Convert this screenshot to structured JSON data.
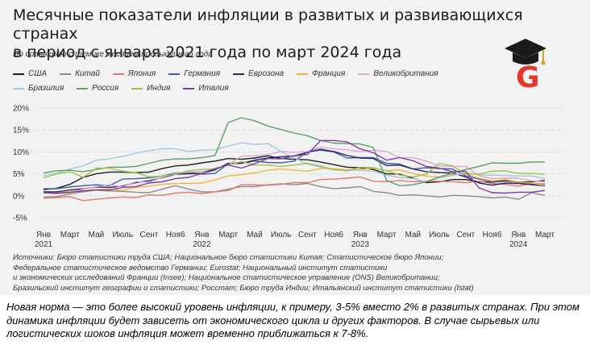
{
  "header": {
    "title_line1": "Месячные показатели инфляции в развитых и развивающихся странах",
    "title_line2": "в период с января 2021 года по март 2024 года",
    "subtitle": "По сравнению с тем же месяцем предыдущего года"
  },
  "colors": {
    "panel_bg": "#f2f2f2",
    "logo_red": "#e2372b",
    "logo_cap": "#1a1a1a"
  },
  "logo": {
    "letter": "G",
    "icon": "graduation-cap-icon"
  },
  "chart_data": {
    "type": "line",
    "title": "Месячные показатели инфляции в развитых и развивающихся странах в период с января 2021 года по март 2024 года",
    "subtitle": "По сравнению с тем же месяцем предыдущего года",
    "ylim": [
      -5,
      20
    ],
    "yticks": [
      -5,
      0,
      5,
      10,
      15,
      20
    ],
    "ytick_labels": [
      "-5%",
      "0%",
      "5%",
      "10%",
      "15%",
      "20%"
    ],
    "grid": "horizontal",
    "legend_position": "top",
    "x_tick_positions": [
      0,
      2,
      4,
      6,
      8,
      10,
      12,
      14,
      16,
      18,
      20,
      22,
      24,
      26,
      28,
      30,
      32,
      34,
      36,
      38
    ],
    "x_tick_labels": [
      "Янв",
      "Март",
      "Май",
      "Июль",
      "Сент",
      "Ноя6",
      "Янв",
      "Март",
      "Май",
      "Июль",
      "Сент",
      "Ноя6",
      "Янв",
      "Март",
      "Май",
      "Июль",
      "Сент",
      "Ноя6",
      "Янв",
      "Март"
    ],
    "x_year_labels": [
      {
        "index": 0,
        "label": "2021"
      },
      {
        "index": 12,
        "label": "2022"
      },
      {
        "index": 24,
        "label": "2023"
      },
      {
        "index": 36,
        "label": "2024"
      }
    ],
    "months": [
      "2021-01",
      "2021-02",
      "2021-03",
      "2021-04",
      "2021-05",
      "2021-06",
      "2021-07",
      "2021-08",
      "2021-09",
      "2021-10",
      "2021-11",
      "2021-12",
      "2022-01",
      "2022-02",
      "2022-03",
      "2022-04",
      "2022-05",
      "2022-06",
      "2022-07",
      "2022-08",
      "2022-09",
      "2022-10",
      "2022-11",
      "2022-12",
      "2023-01",
      "2023-02",
      "2023-03",
      "2023-04",
      "2023-05",
      "2023-06",
      "2023-07",
      "2023-08",
      "2023-09",
      "2023-10",
      "2023-11",
      "2023-12",
      "2024-01",
      "2024-02",
      "2024-03"
    ],
    "series": [
      {
        "name": "США",
        "color": "#1f1f1f",
        "values": [
          1.4,
          1.7,
          2.6,
          4.2,
          5.0,
          5.4,
          5.4,
          5.3,
          5.4,
          6.2,
          6.8,
          7.0,
          7.5,
          7.9,
          8.5,
          8.3,
          8.6,
          9.1,
          8.5,
          8.3,
          8.2,
          7.7,
          7.1,
          6.5,
          6.4,
          6.0,
          5.0,
          4.9,
          4.0,
          3.0,
          3.2,
          3.7,
          3.7,
          3.2,
          3.1,
          3.4,
          3.1,
          3.2,
          3.5
        ]
      },
      {
        "name": "Китай",
        "color": "#8c8c8c",
        "values": [
          -0.3,
          -0.2,
          0.4,
          0.9,
          1.3,
          1.1,
          1.0,
          0.8,
          0.7,
          1.5,
          2.3,
          1.5,
          0.9,
          0.9,
          1.5,
          2.1,
          2.1,
          2.5,
          2.7,
          2.5,
          2.8,
          2.1,
          1.6,
          1.8,
          2.1,
          1.0,
          0.7,
          0.1,
          0.2,
          0.0,
          -0.3,
          0.1,
          0.0,
          -0.2,
          -0.5,
          -0.3,
          -0.8,
          0.7,
          0.1
        ]
      },
      {
        "name": "Япония",
        "color": "#e07a6f",
        "values": [
          -0.6,
          -0.4,
          -0.2,
          -1.1,
          -0.8,
          -0.5,
          -0.3,
          -0.4,
          0.2,
          0.1,
          0.6,
          0.8,
          0.5,
          0.9,
          1.2,
          2.5,
          2.5,
          2.4,
          2.6,
          3.0,
          3.0,
          3.7,
          3.8,
          4.0,
          4.3,
          3.3,
          3.2,
          3.5,
          3.2,
          3.3,
          3.3,
          3.2,
          3.0,
          3.3,
          2.8,
          2.6,
          2.2,
          2.8,
          2.7
        ]
      },
      {
        "name": "Германия",
        "color": "#3f5fa8",
        "values": [
          1.6,
          1.6,
          2.0,
          2.3,
          2.5,
          2.3,
          3.8,
          3.9,
          4.1,
          4.5,
          5.2,
          5.3,
          4.9,
          5.1,
          7.3,
          7.4,
          7.9,
          7.6,
          7.5,
          7.9,
          10.0,
          10.4,
          10.0,
          8.6,
          8.7,
          8.7,
          7.4,
          7.2,
          6.1,
          6.4,
          6.2,
          6.1,
          4.5,
          3.8,
          3.2,
          3.7,
          2.9,
          2.5,
          2.2
        ]
      },
      {
        "name": "Еврозона",
        "color": "#2b2466",
        "values": [
          0.9,
          0.9,
          1.3,
          1.6,
          2.0,
          1.9,
          2.2,
          3.0,
          3.4,
          4.1,
          4.9,
          5.0,
          5.1,
          5.9,
          7.4,
          7.4,
          8.1,
          8.6,
          8.9,
          9.1,
          9.9,
          10.6,
          10.1,
          9.2,
          8.6,
          8.5,
          6.9,
          7.0,
          6.1,
          5.5,
          5.3,
          5.2,
          4.3,
          2.9,
          2.4,
          2.9,
          2.8,
          2.6,
          2.4
        ]
      },
      {
        "name": "Франция",
        "color": "#f0b43c",
        "values": [
          0.6,
          0.6,
          1.1,
          1.2,
          1.4,
          1.5,
          1.2,
          1.9,
          2.2,
          2.6,
          2.8,
          2.8,
          2.9,
          3.6,
          4.5,
          4.8,
          5.2,
          5.8,
          6.1,
          5.8,
          5.6,
          6.2,
          6.2,
          5.9,
          6.0,
          6.3,
          5.7,
          5.9,
          5.1,
          4.5,
          4.3,
          4.8,
          4.9,
          4.0,
          3.4,
          3.7,
          3.1,
          2.9,
          2.3
        ]
      },
      {
        "name": "Великобритания",
        "color": "#d8a8d2",
        "values": [
          0.7,
          0.4,
          0.7,
          1.5,
          2.1,
          2.5,
          2.0,
          3.2,
          3.1,
          4.2,
          5.1,
          5.4,
          5.5,
          6.2,
          7.0,
          9.0,
          9.1,
          9.4,
          10.1,
          9.9,
          10.1,
          11.1,
          10.7,
          10.5,
          10.1,
          10.4,
          10.1,
          8.7,
          8.7,
          7.9,
          6.8,
          6.7,
          6.7,
          4.6,
          3.9,
          4.0,
          4.0,
          3.4,
          3.2
        ]
      },
      {
        "name": "Бразилия",
        "color": "#a9c5dd",
        "values": [
          4.6,
          5.2,
          6.1,
          6.8,
          8.1,
          8.4,
          9.0,
          9.7,
          10.3,
          10.7,
          10.7,
          10.1,
          10.4,
          10.5,
          11.3,
          12.1,
          11.7,
          11.9,
          10.1,
          8.7,
          7.2,
          6.5,
          5.9,
          5.8,
          5.8,
          5.6,
          4.7,
          4.2,
          3.9,
          3.2,
          4.0,
          4.6,
          5.2,
          4.8,
          4.7,
          4.6,
          4.5,
          4.5,
          3.9
        ]
      },
      {
        "name": "Россия",
        "color": "#5d9e6a",
        "values": [
          5.2,
          5.7,
          5.8,
          5.5,
          6.0,
          6.5,
          6.5,
          6.7,
          7.4,
          8.1,
          8.4,
          8.4,
          8.7,
          9.2,
          16.7,
          17.8,
          17.1,
          15.9,
          15.1,
          14.3,
          13.7,
          12.6,
          12.0,
          11.9,
          11.8,
          11.0,
          3.5,
          2.3,
          2.5,
          3.2,
          4.3,
          5.2,
          6.0,
          6.7,
          7.5,
          7.4,
          7.4,
          7.7,
          7.7
        ]
      },
      {
        "name": "Индия",
        "color": "#9fc248",
        "values": [
          4.1,
          5.0,
          5.5,
          4.2,
          6.3,
          6.3,
          5.6,
          5.3,
          4.3,
          4.5,
          4.9,
          5.7,
          6.0,
          6.1,
          7.0,
          7.8,
          7.0,
          7.0,
          6.7,
          7.0,
          7.4,
          6.8,
          5.9,
          5.7,
          6.5,
          6.4,
          5.7,
          4.7,
          4.3,
          4.9,
          7.4,
          6.8,
          5.0,
          4.9,
          5.6,
          5.7,
          5.1,
          5.1,
          4.9
        ]
      },
      {
        "name": "Италия",
        "color": "#7b3f9a",
        "values": [
          0.7,
          0.6,
          0.8,
          1.1,
          1.3,
          1.3,
          1.9,
          2.1,
          2.9,
          3.2,
          3.9,
          4.2,
          5.1,
          6.2,
          7.0,
          6.3,
          7.3,
          8.5,
          8.4,
          9.1,
          9.4,
          12.6,
          12.6,
          12.3,
          10.7,
          9.8,
          8.1,
          8.7,
          8.0,
          6.7,
          6.3,
          5.5,
          5.6,
          1.8,
          0.7,
          0.6,
          0.8,
          0.8,
          1.2
        ]
      }
    ],
    "legend_rows": [
      [
        "США",
        "Китай",
        "Япония",
        "Германия",
        "Еврозона",
        "Франция",
        "Великобритания"
      ],
      [
        "Бразилия",
        "Россия",
        "Индия",
        "Италия"
      ]
    ]
  },
  "sources": {
    "lines": [
      "Источники: Бюро статистики труда США; Национальное бюро статистики Китая; Статистическое бюро Японии;",
      "Федеральное статистическое ведомство Германии; Eurostat; Национальный институт статистики",
      "и экономических исследований Франции (Insee); Национальное статистическое управление (ONS)  Великобритании;",
      "Бразильский институт географии и статистики; Росстат; Бюро труда Индии; Итальянский институт статистики (Istat)"
    ]
  },
  "note": {
    "text": "Новая норма — это более высокий уровень инфляции, к примеру, 3-5% вместо 2% в развитых странах. При этом динамика инфляции будет зависеть от экономического цикла и других факторов. В случае сырьевых или логистических шоков инфляция может временно приближаться к 7-8%."
  }
}
